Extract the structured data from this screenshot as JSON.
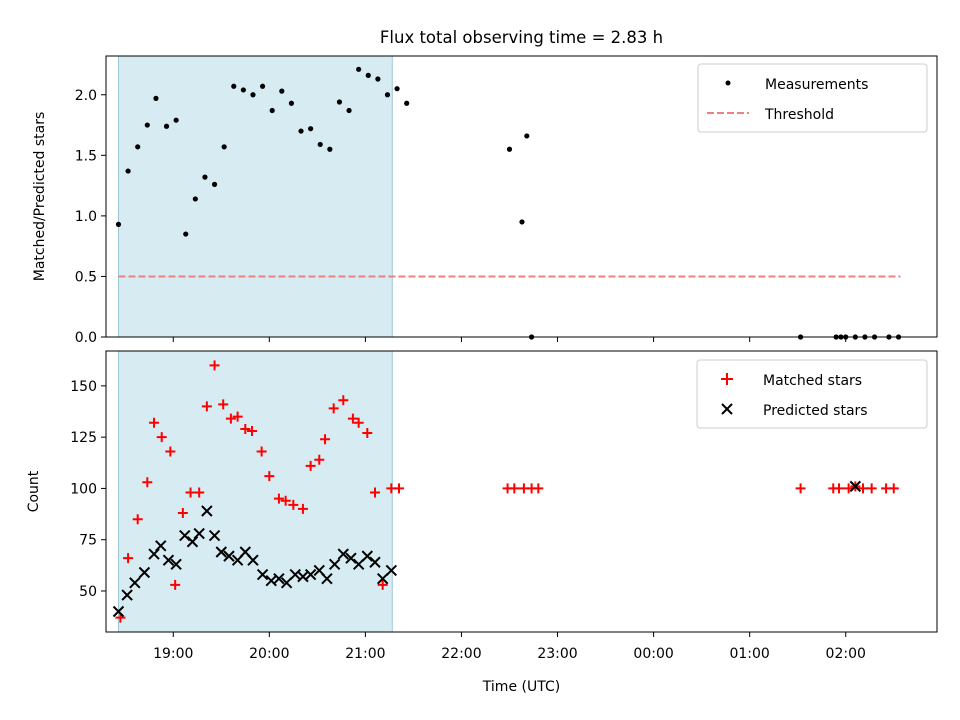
{
  "chart_data": [
    {
      "type": "scatter",
      "title": "Flux total observing time = 2.83 h",
      "xlabel": "",
      "ylabel": "Matched/Predicted stars",
      "xlim": [
        18.3,
        2.95
      ],
      "ylim": [
        0,
        2.32
      ],
      "yticks": [
        0.0,
        0.5,
        1.0,
        1.5,
        2.0
      ],
      "ytick_labels": [
        "0.0",
        "0.5",
        "1.0",
        "1.5",
        "2.0"
      ],
      "xtick_hours": [
        19,
        20,
        21,
        22,
        23,
        0,
        1,
        2
      ],
      "shaded_span": [
        18.43,
        21.28
      ],
      "legend": [
        "Measurements",
        "Threshold"
      ],
      "threshold": {
        "name": "Threshold",
        "y": 0.5,
        "x": [
          18.43,
          2.57
        ],
        "color": "#f08080"
      },
      "series": [
        {
          "name": "Measurements",
          "color": "#000000",
          "x": [
            18.43,
            18.53,
            18.63,
            18.73,
            18.82,
            18.93,
            19.03,
            19.13,
            19.23,
            19.33,
            19.43,
            19.53,
            19.63,
            19.73,
            19.83,
            19.93,
            20.03,
            20.13,
            20.23,
            20.33,
            20.43,
            20.53,
            20.63,
            20.73,
            20.83,
            20.93,
            21.03,
            21.13,
            21.23,
            21.33,
            21.43,
            22.5,
            22.63,
            22.68,
            22.73,
            1.53,
            1.9,
            1.95,
            2.0,
            2.1,
            2.2,
            2.3,
            2.45,
            2.55
          ],
          "y": [
            0.93,
            1.37,
            1.57,
            1.75,
            1.97,
            1.74,
            1.79,
            0.85,
            1.14,
            1.32,
            1.26,
            1.57,
            2.07,
            2.04,
            2.0,
            2.07,
            1.87,
            2.03,
            1.93,
            1.7,
            1.72,
            1.59,
            1.55,
            1.94,
            1.87,
            2.21,
            2.16,
            2.13,
            2.0,
            2.05,
            1.93,
            1.55,
            0.95,
            1.66,
            0.0,
            0.0,
            0.0,
            0.0,
            0.0,
            0.0,
            0.0,
            0.0,
            0.0,
            0.0
          ]
        }
      ]
    },
    {
      "type": "scatter",
      "title": "",
      "xlabel": "Time (UTC)",
      "ylabel": "Count",
      "xlim": [
        18.3,
        2.95
      ],
      "ylim": [
        30,
        167
      ],
      "yticks": [
        50,
        75,
        100,
        125,
        150
      ],
      "ytick_labels": [
        "50",
        "75",
        "100",
        "125",
        "150"
      ],
      "xtick_hours": [
        19,
        20,
        21,
        22,
        23,
        0,
        1,
        2
      ],
      "xtick_labels": [
        "19:00",
        "20:00",
        "21:00",
        "22:00",
        "23:00",
        "00:00",
        "01:00",
        "02:00"
      ],
      "shaded_span": [
        18.43,
        21.28
      ],
      "legend": [
        "Matched stars",
        "Predicted stars"
      ],
      "series": [
        {
          "name": "Matched stars",
          "marker": "plus",
          "color": "#ff0000",
          "x": [
            18.45,
            18.53,
            18.63,
            18.73,
            18.8,
            18.88,
            18.97,
            19.02,
            19.1,
            19.18,
            19.27,
            19.35,
            19.43,
            19.52,
            19.6,
            19.67,
            19.75,
            19.82,
            19.92,
            20.0,
            20.1,
            20.17,
            20.25,
            20.35,
            20.43,
            20.52,
            20.58,
            20.67,
            20.77,
            20.87,
            20.93,
            21.02,
            21.1,
            21.18,
            21.27,
            21.35,
            22.48,
            22.55,
            22.65,
            22.73,
            22.8,
            1.53,
            1.87,
            1.93,
            2.03,
            2.1,
            2.18,
            2.27,
            2.42,
            2.5
          ],
          "y": [
            37,
            66,
            85,
            103,
            132,
            125,
            118,
            53,
            88,
            98,
            98,
            140,
            160,
            141,
            134,
            135,
            129,
            128,
            118,
            106,
            95,
            94,
            92,
            90,
            111,
            114,
            124,
            139,
            143,
            134,
            132,
            127,
            98,
            53,
            100,
            100,
            100,
            100,
            100,
            100,
            100,
            100,
            100,
            100,
            100,
            101,
            100,
            100,
            100,
            100
          ]
        },
        {
          "name": "Predicted stars",
          "marker": "x",
          "color": "#000000",
          "x": [
            18.43,
            18.52,
            18.6,
            18.7,
            18.8,
            18.87,
            18.95,
            19.03,
            19.12,
            19.2,
            19.27,
            19.35,
            19.43,
            19.5,
            19.58,
            19.67,
            19.75,
            19.83,
            19.93,
            20.02,
            20.1,
            20.18,
            20.27,
            20.35,
            20.43,
            20.52,
            20.6,
            20.68,
            20.77,
            20.85,
            20.93,
            21.02,
            21.1,
            21.18,
            21.27,
            2.1
          ],
          "y": [
            40,
            48,
            54,
            59,
            68,
            72,
            65,
            63,
            77,
            74,
            78,
            89,
            77,
            69,
            67,
            65,
            69,
            65,
            58,
            55,
            56,
            54,
            58,
            57,
            58,
            60,
            56,
            63,
            68,
            66,
            63,
            67,
            64,
            56,
            60,
            101
          ]
        }
      ]
    }
  ]
}
